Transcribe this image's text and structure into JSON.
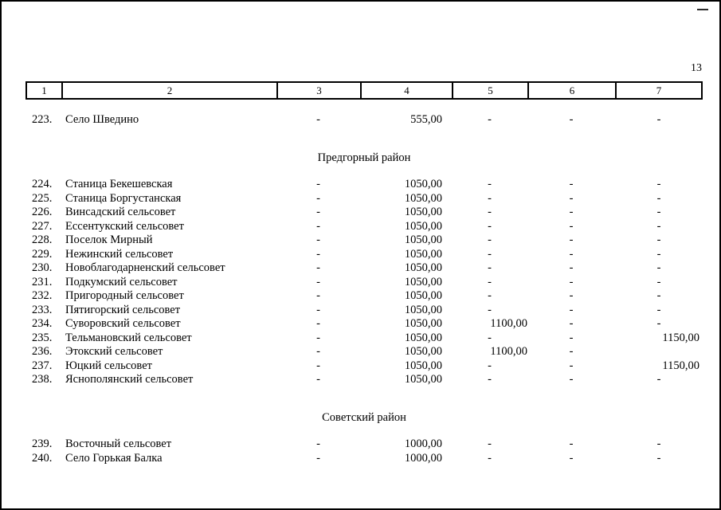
{
  "page": {
    "number": "13"
  },
  "table": {
    "header": [
      "1",
      "2",
      "3",
      "4",
      "5",
      "6",
      "7"
    ],
    "sections": [
      {
        "title": "",
        "rows": [
          [
            "223.",
            "Село Шведино",
            "-",
            "555,00",
            "-",
            "-",
            "-"
          ]
        ]
      },
      {
        "title": "Предгорный район",
        "rows": [
          [
            "224.",
            "Станица Бекешевская",
            "-",
            "1050,00",
            "-",
            "-",
            "-"
          ],
          [
            "225.",
            "Станица Боргустанская",
            "-",
            "1050,00",
            "-",
            "-",
            "-"
          ],
          [
            "226.",
            "Винсадский сельсовет",
            "-",
            "1050,00",
            "-",
            "-",
            "-"
          ],
          [
            "227.",
            "Ессентукский сельсовет",
            "-",
            "1050,00",
            "-",
            "-",
            "-"
          ],
          [
            "228.",
            "Поселок Мирный",
            "-",
            "1050,00",
            "-",
            "-",
            "-"
          ],
          [
            "229.",
            "Нежинский сельсовет",
            "-",
            "1050,00",
            "-",
            "-",
            "-"
          ],
          [
            "230.",
            "Новоблагодарненский сельсовет",
            "-",
            "1050,00",
            "-",
            "-",
            "-"
          ],
          [
            "231.",
            "Подкумский сельсовет",
            "-",
            "1050,00",
            "-",
            "-",
            "-"
          ],
          [
            "232.",
            "Пригородный сельсовет",
            "-",
            "1050,00",
            "-",
            "-",
            "-"
          ],
          [
            "233.",
            "Пятигорский сельсовет",
            "-",
            "1050,00",
            "-",
            "-",
            "-"
          ],
          [
            "234.",
            "Суворовский сельсовет",
            "-",
            "1050,00",
            "1100,00",
            "-",
            "-"
          ],
          [
            "235.",
            "Тельмановский сельсовет",
            "-",
            "1050,00",
            "-",
            "-",
            "1150,00"
          ],
          [
            "236.",
            "Этокский сельсовет",
            "-",
            "1050,00",
            "1100,00",
            "-",
            ""
          ],
          [
            "237.",
            "Юцкий сельсовет",
            "-",
            "1050,00",
            "-",
            "-",
            "1150,00"
          ],
          [
            "238.",
            "Яснополянский сельсовет",
            "-",
            "1050,00",
            "-",
            "-",
            "-"
          ]
        ]
      },
      {
        "title": "Советский район",
        "rows": [
          [
            "239.",
            "Восточный сельсовет",
            "-",
            "1000,00",
            "-",
            "-",
            "-"
          ],
          [
            "240.",
            "Село Горькая Балка",
            "-",
            "1000,00",
            "-",
            "-",
            "-"
          ]
        ]
      }
    ]
  }
}
